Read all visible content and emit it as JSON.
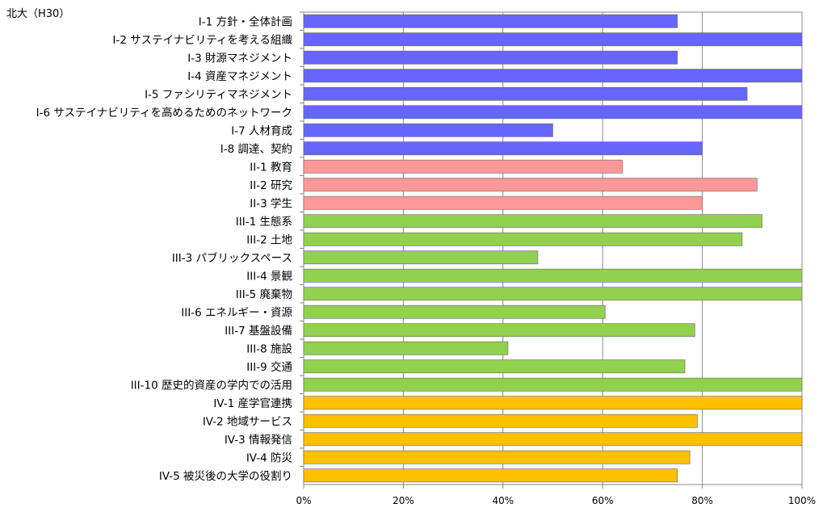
{
  "header": {
    "label": "北大（H30）"
  },
  "chart_data": {
    "type": "bar",
    "orientation": "horizontal",
    "title": "",
    "xlabel": "",
    "ylabel": "",
    "xlim": [
      0,
      100
    ],
    "x_ticks": [
      "0%",
      "20%",
      "40%",
      "60%",
      "80%",
      "100%"
    ],
    "grid": "vertical",
    "groups": [
      {
        "name": "I",
        "color": "#6666ff"
      },
      {
        "name": "II",
        "color": "#ff9999"
      },
      {
        "name": "III",
        "color": "#92d050"
      },
      {
        "name": "IV",
        "color": "#ffc000"
      }
    ],
    "categories": [
      "I-1 方針・全体計画",
      "I-2 サステイナビリティを考える組織",
      "I-3 財源マネジメント",
      "I-4 資産マネジメント",
      "I-5 ファシリティマネジメント",
      "I-6 サステイナビリティを高めるためのネットワーク",
      "I-7 人材育成",
      "I-8 調達、契約",
      "II-1 教育",
      "II-2 研究",
      "II-3 学生",
      "III-1 生態系",
      "III-2 土地",
      "III-3 パブリックスペース",
      "III-4 景観",
      "III-5 廃棄物",
      "III-6 エネルギー・資源",
      "III-7 基盤設備",
      "III-8 施設",
      "III-9 交通",
      "III-10 歴史的資産の学内での活用",
      "IV-1 産学官連携",
      "IV-2 地域サービス",
      "IV-3 情報発信",
      "IV-4 防災",
      "IV-5 被災後の大学の役割り"
    ],
    "values": [
      75,
      100,
      75,
      100,
      89,
      100,
      50,
      80,
      64,
      91,
      80,
      92,
      88,
      47,
      100,
      100,
      60.5,
      78.5,
      41,
      76.5,
      100,
      100,
      79,
      100,
      77.5,
      75
    ],
    "group_index": [
      0,
      0,
      0,
      0,
      0,
      0,
      0,
      0,
      1,
      1,
      1,
      2,
      2,
      2,
      2,
      2,
      2,
      2,
      2,
      2,
      2,
      3,
      3,
      3,
      3,
      3
    ]
  }
}
